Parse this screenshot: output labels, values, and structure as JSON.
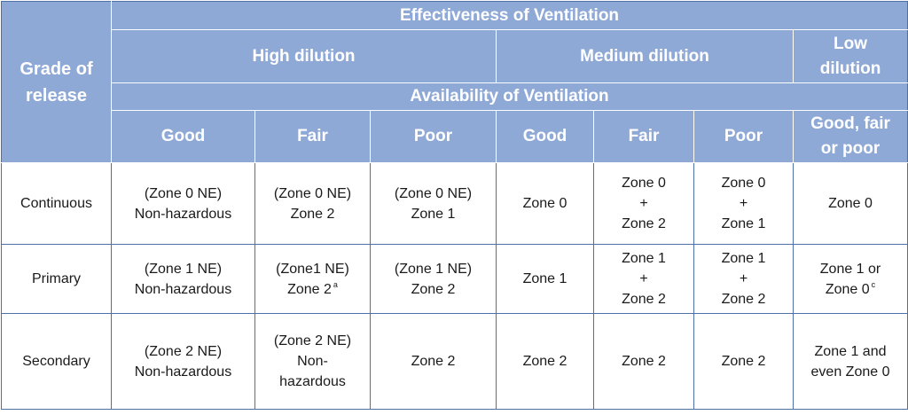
{
  "header": {
    "grade_of_release": [
      "Grade of",
      "release"
    ],
    "effectiveness": "Effectiveness of Ventilation",
    "availability": "Availability of Ventilation",
    "dilution": {
      "high": "High dilution",
      "medium": "Medium dilution",
      "low": [
        "Low",
        "dilution"
      ]
    },
    "availability_levels": [
      [
        "Good"
      ],
      [
        "Fair"
      ],
      [
        "Poor"
      ],
      [
        "Good"
      ],
      [
        "Fair"
      ],
      [
        "Poor"
      ],
      [
        "Good, fair",
        "or poor"
      ]
    ]
  },
  "rows": [
    {
      "grade": "Continuous",
      "cells": [
        {
          "lines": [
            "(Zone 0 NE)",
            "Non-hazardous"
          ]
        },
        {
          "lines": [
            "(Zone 0 NE)",
            "Zone 2"
          ]
        },
        {
          "lines": [
            "(Zone 0 NE)",
            "Zone 1"
          ]
        },
        {
          "lines": [
            "Zone 0"
          ]
        },
        {
          "lines": [
            "Zone 0",
            "+",
            "Zone 2"
          ]
        },
        {
          "lines": [
            "Zone 0",
            "+",
            "Zone 1"
          ]
        },
        {
          "lines": [
            "Zone 0"
          ]
        }
      ]
    },
    {
      "grade": "Primary",
      "cells": [
        {
          "lines": [
            "(Zone 1 NE)",
            "Non-hazardous"
          ]
        },
        {
          "lines": [
            "(Zone1 NE)",
            "Zone 2"
          ],
          "note": "a"
        },
        {
          "lines": [
            "(Zone 1 NE)",
            "Zone 2"
          ]
        },
        {
          "lines": [
            "Zone 1"
          ]
        },
        {
          "lines": [
            "Zone 1",
            "+",
            "Zone 2"
          ]
        },
        {
          "lines": [
            "Zone 1",
            "+",
            "Zone 2"
          ]
        },
        {
          "lines": [
            "Zone 1 or",
            "Zone 0"
          ],
          "note": "c"
        }
      ]
    },
    {
      "grade": "Secondary",
      "cells": [
        {
          "lines": [
            "(Zone 2 NE)",
            "Non-hazardous"
          ]
        },
        {
          "lines": [
            "(Zone 2 NE)",
            "Non-",
            "hazardous"
          ]
        },
        {
          "lines": [
            "Zone 2"
          ]
        },
        {
          "lines": [
            "Zone 2"
          ]
        },
        {
          "lines": [
            "Zone 2"
          ]
        },
        {
          "lines": [
            "Zone 2"
          ]
        },
        {
          "lines": [
            "Zone 1 and",
            "even Zone 0"
          ]
        }
      ]
    }
  ],
  "colors": {
    "header_bg": "#8fa9d7",
    "header_text": "#ffffff",
    "border": "#4f6fa8",
    "body_text": "#1a1a1a"
  }
}
